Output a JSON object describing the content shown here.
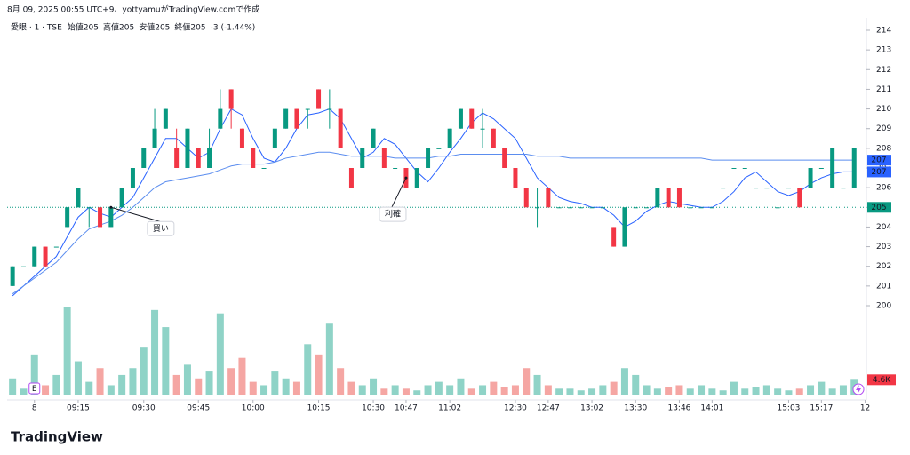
{
  "header": {
    "caption": "8月 09, 2025 00:55 UTC+9、yottyamuがTradingView.comで作成",
    "symbol": "愛眼 · 1 · TSE",
    "ohlc": [
      {
        "label": "始値",
        "value": 205
      },
      {
        "label": "高値",
        "value": 205
      },
      {
        "label": "安値",
        "value": 205
      },
      {
        "label": "終値",
        "value": 205
      }
    ],
    "change": "-3 (-1.44%)"
  },
  "logo": "TradingView",
  "earnings_marker": "E",
  "chart_data": {
    "type": "candlestick",
    "candles": [
      [
        201,
        202,
        201,
        202
      ],
      [
        202,
        202,
        202,
        202
      ],
      [
        202,
        203,
        202,
        203
      ],
      [
        203,
        203,
        202,
        202
      ],
      [
        203,
        203,
        203,
        203
      ],
      [
        204,
        205,
        204,
        205
      ],
      [
        205,
        206,
        205,
        206
      ],
      [
        205,
        205,
        204,
        205
      ],
      [
        205,
        205,
        204,
        204
      ],
      [
        204,
        205,
        204,
        205
      ],
      [
        205,
        206,
        205,
        206
      ],
      [
        206,
        207,
        206,
        207
      ],
      [
        207,
        208,
        207,
        208
      ],
      [
        208,
        210,
        208,
        209
      ],
      [
        209,
        210,
        209,
        210
      ],
      [
        208,
        209,
        207,
        207
      ],
      [
        207,
        209,
        207,
        209
      ],
      [
        208,
        208,
        207,
        207
      ],
      [
        207,
        209,
        207,
        208
      ],
      [
        209,
        211,
        209,
        210
      ],
      [
        211,
        211,
        209,
        210
      ],
      [
        209,
        209,
        208,
        208
      ],
      [
        208,
        208,
        207,
        207
      ],
      [
        207,
        207,
        207,
        207
      ],
      [
        208,
        209,
        208,
        209
      ],
      [
        209,
        210,
        209,
        210
      ],
      [
        210,
        210,
        209,
        209
      ],
      [
        210,
        210,
        209,
        210
      ],
      [
        211,
        211,
        210,
        210
      ],
      [
        210,
        211,
        209,
        210
      ],
      [
        210,
        210,
        208,
        208
      ],
      [
        207,
        207,
        206,
        206
      ],
      [
        207,
        208,
        207,
        208
      ],
      [
        208,
        209,
        208,
        209
      ],
      [
        208,
        208,
        207,
        207
      ],
      [
        207,
        207,
        207,
        207
      ],
      [
        207,
        207,
        206,
        206
      ],
      [
        206,
        207,
        206,
        207
      ],
      [
        207,
        208,
        207,
        208
      ],
      [
        208,
        208,
        208,
        208
      ],
      [
        208,
        209,
        208,
        209
      ],
      [
        209,
        210,
        209,
        210
      ],
      [
        210,
        210,
        209,
        209
      ],
      [
        209,
        210,
        208,
        209
      ],
      [
        209,
        209,
        208,
        208
      ],
      [
        208,
        208,
        207,
        207
      ],
      [
        207,
        207,
        206,
        206
      ],
      [
        206,
        206,
        205,
        205
      ],
      [
        205,
        206,
        204,
        205
      ],
      [
        206,
        206,
        205,
        205
      ],
      [
        205,
        205,
        205,
        205
      ],
      [
        205,
        205,
        205,
        205
      ],
      [
        205,
        205,
        205,
        205
      ],
      [
        205,
        205,
        205,
        205
      ],
      [
        205,
        205,
        205,
        205
      ],
      [
        204,
        204,
        203,
        203
      ],
      [
        203,
        205,
        203,
        205
      ],
      [
        205,
        205,
        205,
        205
      ],
      [
        205,
        205,
        205,
        205
      ],
      [
        205,
        206,
        205,
        206
      ],
      [
        206,
        206,
        205,
        205
      ],
      [
        206,
        206,
        205,
        205
      ],
      [
        205,
        205,
        205,
        205
      ],
      [
        205,
        205,
        205,
        205
      ],
      [
        205,
        205,
        205,
        205
      ],
      [
        206,
        206,
        206,
        206
      ],
      [
        207,
        207,
        207,
        207
      ],
      [
        207,
        207,
        207,
        207
      ],
      [
        206,
        206,
        206,
        206
      ],
      [
        206,
        206,
        206,
        206
      ],
      [
        205,
        205,
        205,
        205
      ],
      [
        206,
        206,
        206,
        206
      ],
      [
        206,
        206,
        205,
        205
      ],
      [
        206,
        207,
        206,
        207
      ],
      [
        207,
        207,
        207,
        207
      ],
      [
        206,
        208,
        206,
        208
      ],
      [
        206,
        206,
        206,
        206
      ],
      [
        206,
        208,
        206,
        208
      ]
    ],
    "up_color": "#089981",
    "down_color": "#f23645",
    "series": [
      {
        "color": "#2962ff",
        "values": [
          200.5,
          201,
          201.5,
          202,
          202.5,
          203.5,
          204.5,
          205,
          204.7,
          204.5,
          205,
          205.5,
          206.5,
          207.5,
          208.5,
          208.5,
          208,
          207.5,
          207.8,
          209,
          210,
          209.7,
          208.5,
          207.5,
          207.3,
          208,
          209,
          209.7,
          209.8,
          210,
          209.5,
          208.5,
          207.5,
          207.8,
          208.5,
          208.2,
          207.5,
          206.8,
          206.3,
          207,
          207.8,
          208.5,
          209.3,
          209.8,
          209.5,
          209,
          208.5,
          207.5,
          206.5,
          206,
          205.5,
          205.3,
          205.2,
          205,
          205,
          204.6,
          204,
          204.3,
          204.8,
          205.1,
          205.3,
          205.2,
          205.1,
          205,
          205,
          205.3,
          205.8,
          206.5,
          206.8,
          206.3,
          205.8,
          205.6,
          205.8,
          206.2,
          206.5,
          206.7,
          206.8,
          206.8
        ]
      },
      {
        "color": "#5b8def",
        "values": [
          200.6,
          201,
          201.4,
          201.8,
          202.2,
          202.8,
          203.4,
          203.9,
          204.1,
          204.3,
          204.6,
          205,
          205.5,
          206,
          206.3,
          206.4,
          206.5,
          206.6,
          206.7,
          206.9,
          207.1,
          207.2,
          207.2,
          207.2,
          207.3,
          207.5,
          207.6,
          207.7,
          207.8,
          207.8,
          207.7,
          207.6,
          207.6,
          207.6,
          207.6,
          207.5,
          207.5,
          207.5,
          207.5,
          207.6,
          207.6,
          207.7,
          207.7,
          207.7,
          207.7,
          207.7,
          207.7,
          207.7,
          207.6,
          207.6,
          207.6,
          207.5,
          207.5,
          207.5,
          207.5,
          207.5,
          207.5,
          207.5,
          207.5,
          207.5,
          207.5,
          207.5,
          207.5,
          207.5,
          207.4,
          207.4,
          207.4,
          207.4,
          207.4,
          207.4,
          207.4,
          207.4,
          207.4,
          207.4,
          207.4,
          207.4,
          207.4,
          207.4
        ]
      }
    ],
    "volume": {
      "values": [
        5000,
        2000,
        12000,
        3000,
        6000,
        26000,
        10000,
        4000,
        8000,
        3000,
        6000,
        8000,
        14000,
        25000,
        20000,
        6000,
        9000,
        5000,
        7000,
        24000,
        8000,
        11000,
        4000,
        3000,
        7000,
        5000,
        4000,
        15000,
        12000,
        21000,
        8000,
        4000,
        3000,
        5000,
        2000,
        3000,
        2000,
        1500,
        3000,
        4000,
        3000,
        5000,
        2000,
        3000,
        4000,
        2500,
        3000,
        8000,
        6000,
        3000,
        2000,
        2000,
        1500,
        2000,
        3000,
        4000,
        8000,
        6000,
        3000,
        2000,
        2500,
        3000,
        2000,
        3000,
        2000,
        1500,
        4000,
        2000,
        2500,
        3000,
        2000,
        1500,
        2000,
        3000,
        4000,
        2000,
        3000,
        4600
      ],
      "up_color": "#8fd3c7",
      "down_color": "#f5a6a3"
    },
    "volume_tag": {
      "value": 4600,
      "label": "4.6K",
      "color": "#f23645"
    },
    "price_tags": [
      {
        "value": 207.4,
        "label": "207",
        "color": "#2962ff"
      },
      {
        "value": 206.8,
        "label": "207",
        "color": "#2962ff"
      },
      {
        "value": 205,
        "label": "205",
        "color": "#089981"
      }
    ],
    "ylim": [
      200,
      214
    ],
    "yticks": [
      200,
      201,
      202,
      203,
      204,
      205,
      206,
      207,
      208,
      209,
      210,
      211,
      212,
      213,
      214
    ],
    "xticks": [
      {
        "value": 2,
        "label": "8"
      },
      {
        "value": 6,
        "label": "09:15"
      },
      {
        "value": 12,
        "label": "09:30"
      },
      {
        "value": 17,
        "label": "09:45"
      },
      {
        "value": 22,
        "label": "10:00"
      },
      {
        "value": 28,
        "label": "10:15"
      },
      {
        "value": 33,
        "label": "10:30"
      },
      {
        "value": 36,
        "label": "10:47"
      },
      {
        "value": 40,
        "label": "11:02"
      },
      {
        "value": 46,
        "label": "12:30"
      },
      {
        "value": 49,
        "label": "12:47"
      },
      {
        "value": 53,
        "label": "13:02"
      },
      {
        "value": 57,
        "label": "13:30"
      },
      {
        "value": 61,
        "label": "13:46"
      },
      {
        "value": 64,
        "label": "14:01"
      },
      {
        "value": 71,
        "label": "15:03"
      },
      {
        "value": 74,
        "label": "15:17"
      },
      {
        "value": 78,
        "label": "12"
      }
    ],
    "annotations": [
      {
        "text": "買い",
        "index": 9,
        "price": 205
      },
      {
        "text": "利確",
        "index": 36,
        "price": 206.5
      }
    ]
  }
}
